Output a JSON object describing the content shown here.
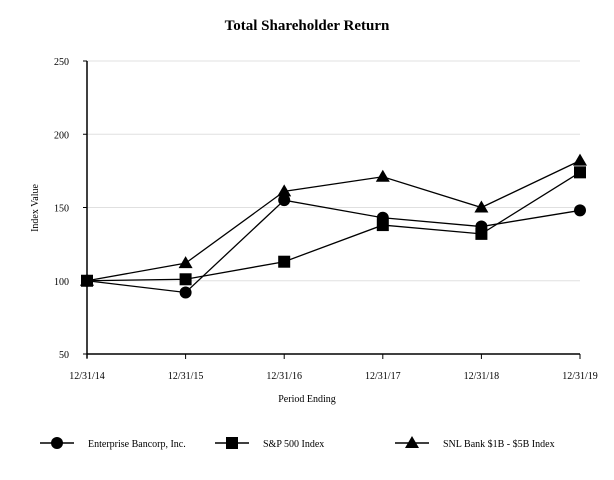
{
  "chart_data": {
    "type": "line",
    "title": "Total Shareholder Return",
    "xlabel": "Period Ending",
    "ylabel": "Index Value",
    "categories": [
      "12/31/14",
      "12/31/15",
      "12/31/16",
      "12/31/17",
      "12/31/18",
      "12/31/19"
    ],
    "ylim": [
      50,
      250
    ],
    "yticks": [
      50,
      100,
      150,
      200,
      250
    ],
    "grid": true,
    "legend": "bottom",
    "series": [
      {
        "name": "Enterprise Bancorp, Inc.",
        "marker": "circle",
        "values": [
          100,
          92,
          155,
          143,
          137,
          148
        ]
      },
      {
        "name": "S&P 500 Index",
        "marker": "square",
        "values": [
          100,
          101,
          113,
          138,
          132,
          174
        ]
      },
      {
        "name": "SNL Bank $1B - $5B Index",
        "marker": "triangle",
        "values": [
          100,
          112,
          161,
          171,
          150,
          182
        ]
      }
    ],
    "colors": {
      "line": "#000000",
      "grid": "#e0e0e0"
    }
  }
}
